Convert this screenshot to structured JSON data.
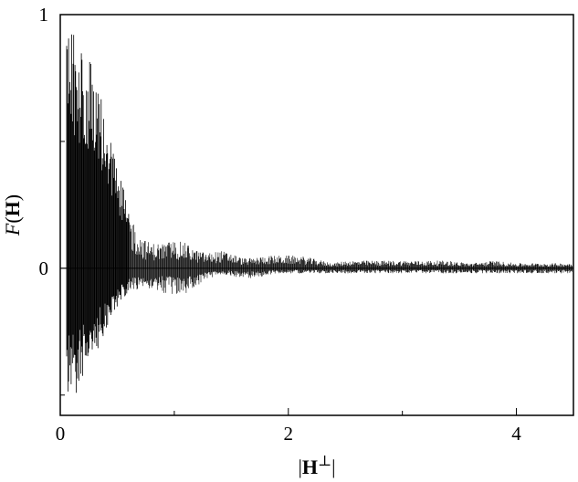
{
  "chart_data": {
    "type": "line",
    "title": "",
    "xlabel": "|H⊥|",
    "ylabel": "F(H)",
    "xlabel_parts": {
      "open": "|",
      "symbol": "H",
      "superscript": "⊥",
      "close": "|"
    },
    "ylabel_parts": {
      "italic": "F",
      "open": "(",
      "symbol": "H",
      "close": ")"
    },
    "xlim": [
      0,
      4.5
    ],
    "ylim": [
      -0.58,
      1
    ],
    "x_ticks": [
      0,
      2,
      4
    ],
    "x_tick_labels": [
      "0",
      "2",
      "4"
    ],
    "y_ticks": [
      0,
      1
    ],
    "y_tick_labels": [
      "0",
      "1"
    ],
    "grid": false,
    "legend": "none",
    "line_color": "#000000",
    "series": [
      {
        "envelope_upper": {
          "x": [
            0.05,
            0.1,
            0.15,
            0.2,
            0.25,
            0.3,
            0.35,
            0.4,
            0.45,
            0.5,
            0.55,
            0.6,
            0.65,
            0.7,
            0.75,
            0.8,
            0.9,
            1.0,
            1.1,
            1.2,
            1.3,
            1.4,
            1.5,
            1.6,
            1.7,
            1.8,
            1.9,
            2.0,
            2.1,
            2.2,
            2.3,
            2.4,
            2.5,
            2.6,
            2.7,
            2.8,
            3.0,
            3.2,
            3.4,
            3.6,
            3.8,
            4.0,
            4.2,
            4.5
          ],
          "values": [
            0.98,
            0.96,
            0.9,
            0.86,
            0.84,
            0.78,
            0.7,
            0.6,
            0.5,
            0.4,
            0.32,
            0.24,
            0.18,
            0.13,
            0.11,
            0.1,
            0.1,
            0.11,
            0.1,
            0.07,
            0.06,
            0.07,
            0.06,
            0.04,
            0.04,
            0.05,
            0.05,
            0.05,
            0.05,
            0.04,
            0.03,
            0.02,
            0.03,
            0.03,
            0.03,
            0.03,
            0.03,
            0.03,
            0.03,
            0.02,
            0.03,
            0.02,
            0.02,
            0.02
          ]
        },
        "envelope_lower": {
          "x": [
            0.05,
            0.1,
            0.15,
            0.2,
            0.25,
            0.3,
            0.35,
            0.4,
            0.45,
            0.5,
            0.55,
            0.6,
            0.65,
            0.7,
            0.75,
            0.8,
            0.9,
            1.0,
            1.1,
            1.2,
            1.3,
            1.4,
            1.5,
            1.6,
            1.7,
            1.8,
            1.9,
            2.0,
            2.1,
            2.2,
            2.3,
            2.4,
            2.5,
            2.6,
            2.7,
            2.8,
            3.0,
            3.2,
            3.4,
            3.6,
            3.8,
            4.0,
            4.2,
            4.5
          ],
          "values": [
            -0.48,
            -0.52,
            -0.5,
            -0.44,
            -0.38,
            -0.34,
            -0.3,
            -0.24,
            -0.2,
            -0.15,
            -0.12,
            -0.1,
            -0.09,
            -0.08,
            -0.08,
            -0.08,
            -0.1,
            -0.11,
            -0.1,
            -0.07,
            -0.04,
            -0.03,
            -0.03,
            -0.04,
            -0.04,
            -0.03,
            -0.02,
            -0.02,
            -0.02,
            -0.02,
            -0.02,
            -0.02,
            -0.02,
            -0.02,
            -0.02,
            -0.02,
            -0.02,
            -0.02,
            -0.02,
            -0.02,
            -0.02,
            -0.02,
            -0.02,
            -0.02
          ]
        }
      }
    ]
  }
}
